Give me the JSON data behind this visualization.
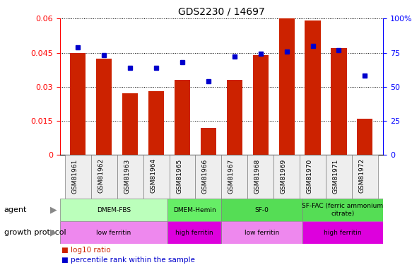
{
  "title": "GDS2230 / 14697",
  "samples": [
    "GSM81961",
    "GSM81962",
    "GSM81963",
    "GSM81964",
    "GSM81965",
    "GSM81966",
    "GSM81967",
    "GSM81968",
    "GSM81969",
    "GSM81970",
    "GSM81971",
    "GSM81972"
  ],
  "log10_ratio": [
    0.045,
    0.0425,
    0.027,
    0.028,
    0.033,
    0.012,
    0.033,
    0.044,
    0.06,
    0.059,
    0.047,
    0.016
  ],
  "percentile_rank": [
    79,
    73,
    64,
    64,
    68,
    54,
    72,
    74,
    76,
    80,
    77,
    58
  ],
  "ylim_left": [
    0,
    0.06
  ],
  "ylim_right": [
    0,
    100
  ],
  "yticks_left": [
    0,
    0.015,
    0.03,
    0.045,
    0.06
  ],
  "ytick_labels_left": [
    "0",
    "0.015",
    "0.03",
    "0.045",
    "0.06"
  ],
  "yticks_right": [
    0,
    25,
    50,
    75,
    100
  ],
  "ytick_labels_right": [
    "0",
    "25",
    "50",
    "75",
    "100%"
  ],
  "bar_color": "#cc2200",
  "dot_color": "#0000cc",
  "agent_group_data": [
    {
      "label": "DMEM-FBS",
      "start": 0,
      "end": 4,
      "color": "#bbffbb"
    },
    {
      "label": "DMEM-Hemin",
      "start": 4,
      "end": 6,
      "color": "#66ee66"
    },
    {
      "label": "SF-0",
      "start": 6,
      "end": 9,
      "color": "#55dd55"
    },
    {
      "label": "SF-FAC (ferric ammonium\ncitrate)",
      "start": 9,
      "end": 12,
      "color": "#55dd55"
    }
  ],
  "growth_group_data": [
    {
      "label": "low ferritin",
      "start": 0,
      "end": 4,
      "color": "#ee88ee"
    },
    {
      "label": "high ferritin",
      "start": 4,
      "end": 6,
      "color": "#dd00dd"
    },
    {
      "label": "low ferritin",
      "start": 6,
      "end": 9,
      "color": "#ee88ee"
    },
    {
      "label": "high ferritin",
      "start": 9,
      "end": 12,
      "color": "#dd00dd"
    }
  ]
}
